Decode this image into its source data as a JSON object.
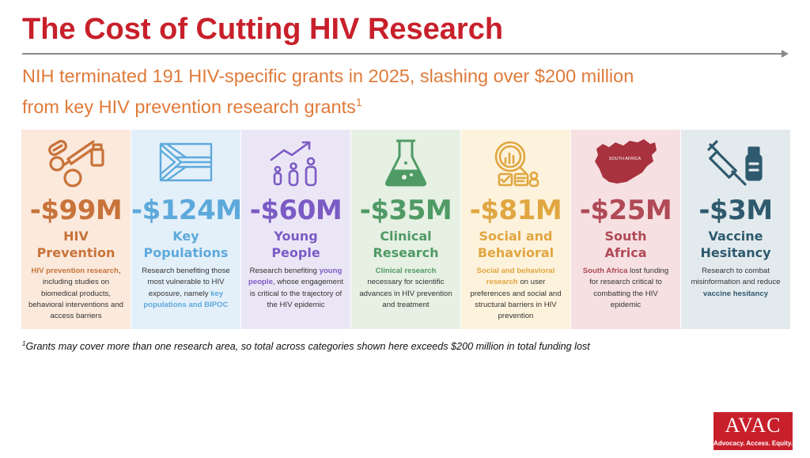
{
  "title": "The Cost of Cutting HIV Research",
  "subtitle": {
    "line1": "NIH terminated 191 HIV-specific grants in 2025, slashing over $200 million",
    "line2": "from key HIV prevention research grants",
    "footnote_marker": "1"
  },
  "cards": [
    {
      "amount": "-$99M",
      "name_line1": "HIV",
      "name_line2": "Prevention",
      "icon": "syringe-pills-icon",
      "desc": [
        {
          "text": "HIV prevention research",
          "bold": true
        },
        {
          "text": ", including studies on biomedical products, behavioral interventions and access barriers",
          "bold": false
        }
      ]
    },
    {
      "amount": "-$124M",
      "name_line1": "Key",
      "name_line2": "Populations",
      "icon": "flag-icon",
      "desc": [
        {
          "text": "Research benefiting those most vulnerable to HIV exposure, namely ",
          "bold": false
        },
        {
          "text": "key populations and BIPOC",
          "bold": true
        }
      ]
    },
    {
      "amount": "-$60M",
      "name_line1": "Young",
      "name_line2": "People",
      "icon": "growth-people-icon",
      "desc": [
        {
          "text": "Research benefiting ",
          "bold": false
        },
        {
          "text": "young people",
          "bold": true
        },
        {
          "text": ", whose engagement is critical to the trajectory of the HIV epidemic",
          "bold": false
        }
      ]
    },
    {
      "amount": "-$35M",
      "name_line1": "Clinical",
      "name_line2": "Research",
      "icon": "flask-icon",
      "desc": [
        {
          "text": "Clinical research",
          "bold": true
        },
        {
          "text": " necessary for scientific advances in HIV prevention and treatment",
          "bold": false
        }
      ]
    },
    {
      "amount": "-$81M",
      "name_line1": "Social and",
      "name_line2": "Behavioral",
      "icon": "magnifier-chart-icon",
      "desc": [
        {
          "text": "Social and behavioral research",
          "bold": true
        },
        {
          "text": " on user preferences and social and structural barriers in HIV prevention",
          "bold": false
        }
      ]
    },
    {
      "amount": "-$25M",
      "name_line1": "South",
      "name_line2": "Africa",
      "icon": "south-africa-map-icon",
      "map_label": "SOUTH AFRICA",
      "desc": [
        {
          "text": "South Africa",
          "bold": true
        },
        {
          "text": " lost funding for research critical to combatting the HIV epidemic",
          "bold": false
        }
      ]
    },
    {
      "amount": "-$3M",
      "name_line1": "Vaccine",
      "name_line2": "Hesitancy",
      "icon": "syringe-vial-icon",
      "desc": [
        {
          "text": "Research to combat misinformation and reduce ",
          "bold": false
        },
        {
          "text": "vaccine hesitancy",
          "bold": true
        }
      ]
    }
  ],
  "footnote": {
    "marker": "1",
    "text": "Grants may cover more than one research area, so total across categories shown here exceeds $200 million in total funding lost"
  },
  "logo": {
    "name": "AVAC",
    "tagline": "Advocacy. Access. Equity."
  },
  "colors": {
    "title": "#c8202b",
    "subtitle": "#e07a3a",
    "card_accents": [
      "#c8733a",
      "#5ea9db",
      "#7b5bc4",
      "#4f9a65",
      "#e0a640",
      "#b04a56",
      "#2f5a6e"
    ]
  }
}
